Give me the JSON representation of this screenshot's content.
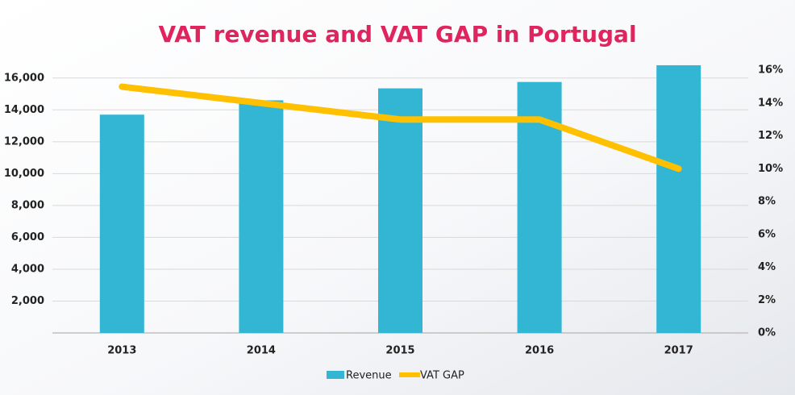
{
  "chart_data": {
    "type": "bar_line",
    "title": "VAT revenue and VAT GAP in Portugal",
    "categories": [
      "2013",
      "2014",
      "2015",
      "2016",
      "2017"
    ],
    "series": [
      {
        "name": "Revenue",
        "type": "bar",
        "color": "#33b5d4",
        "values": [
          13700,
          14600,
          15350,
          15750,
          16800
        ]
      },
      {
        "name": "VAT GAP",
        "type": "line",
        "color": "#ffc000",
        "axis": "y2",
        "values": [
          15,
          14,
          13,
          13,
          10
        ]
      }
    ],
    "ylim": [
      0,
      17000
    ],
    "yticks": [
      {
        "value": 2000,
        "label": "2,000"
      },
      {
        "value": 4000,
        "label": "4,000"
      },
      {
        "value": 6000,
        "label": "6,000"
      },
      {
        "value": 8000,
        "label": "8,000"
      },
      {
        "value": 10000,
        "label": "10,000"
      },
      {
        "value": 12000,
        "label": "12,000"
      },
      {
        "value": 14000,
        "label": "14,000"
      },
      {
        "value": 16000,
        "label": "16,000"
      }
    ],
    "y2lim": [
      0,
      16.5
    ],
    "y2ticks": [
      {
        "value": 0,
        "label": "0%"
      },
      {
        "value": 2,
        "label": "2%"
      },
      {
        "value": 4,
        "label": "4%"
      },
      {
        "value": 6,
        "label": "6%"
      },
      {
        "value": 8,
        "label": "8%"
      },
      {
        "value": 10,
        "label": "10%"
      },
      {
        "value": 12,
        "label": "12%"
      },
      {
        "value": 14,
        "label": "14%"
      },
      {
        "value": 16,
        "label": "16%"
      }
    ],
    "grid": true,
    "legend": "bottom"
  }
}
